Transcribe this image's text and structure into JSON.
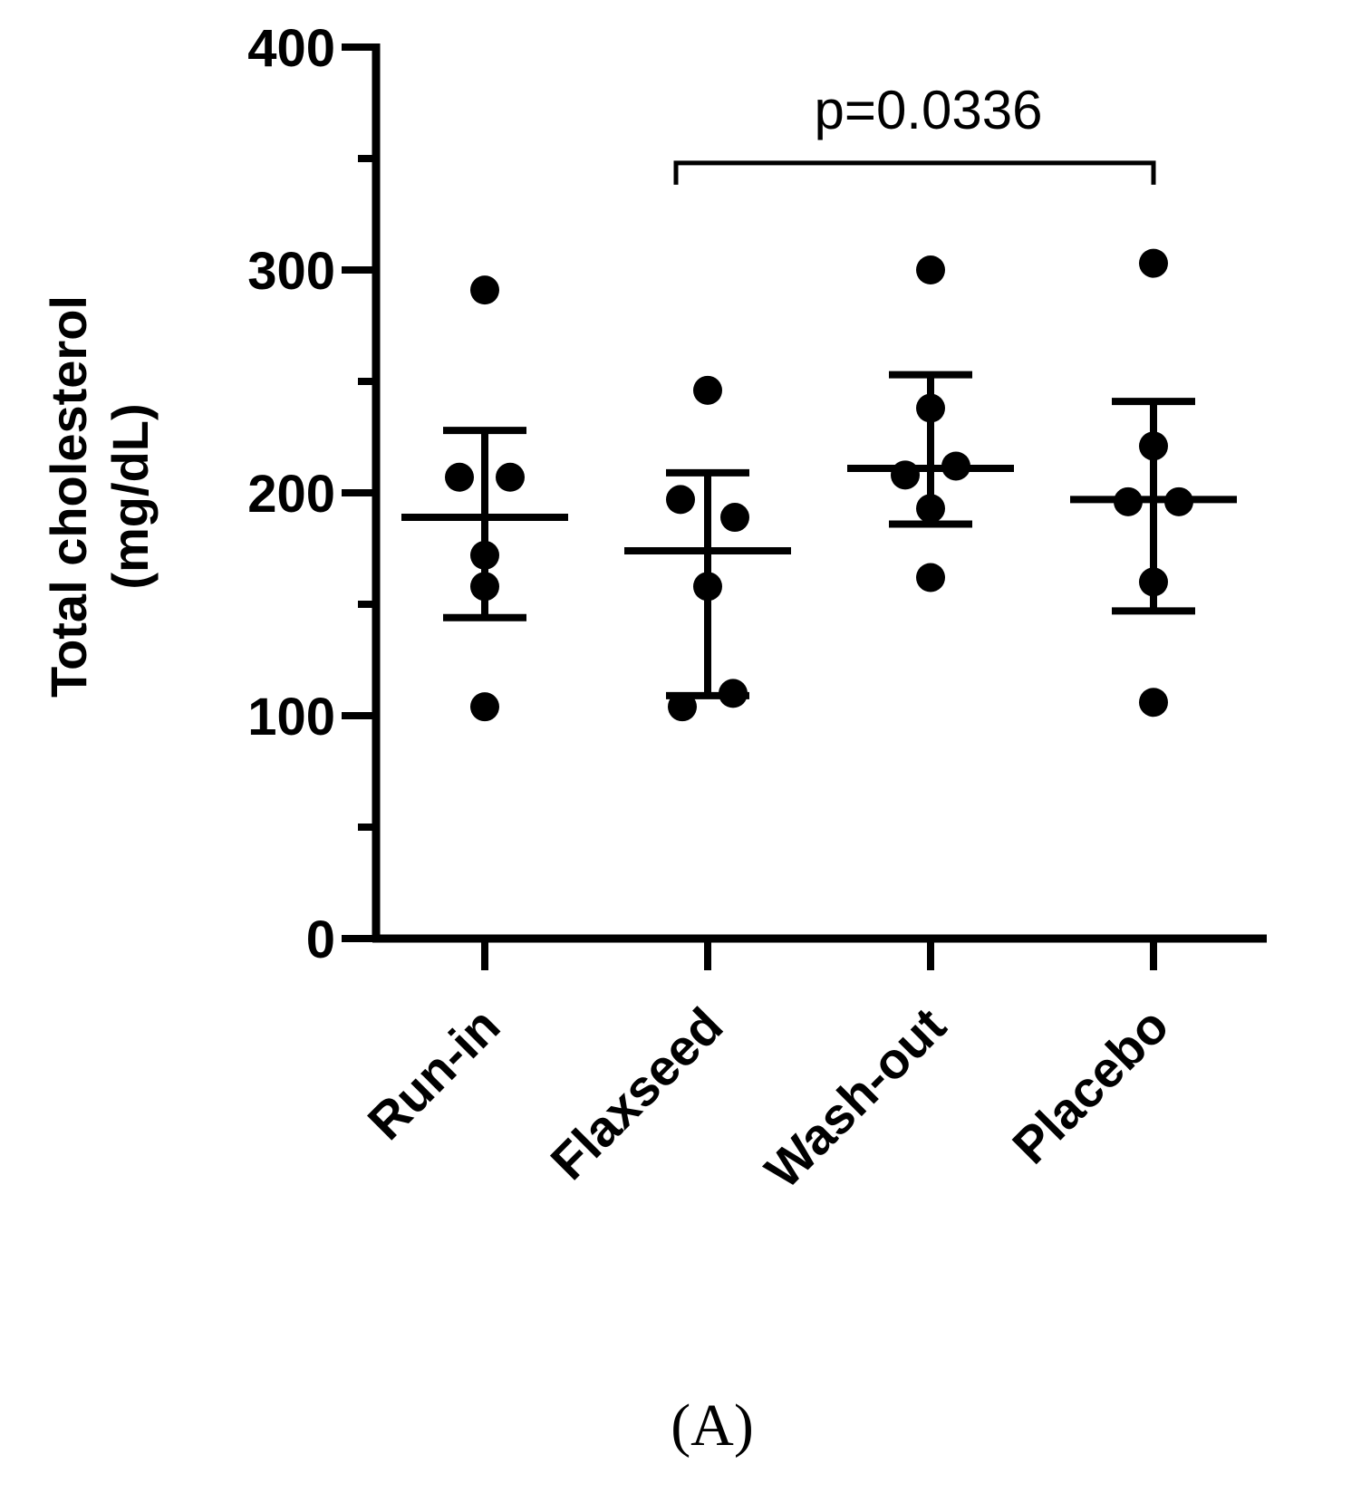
{
  "chart_data": {
    "type": "scatter",
    "title": "",
    "xlabel": "",
    "ylabel": [
      "Total cholesterol",
      "(mg/dL)"
    ],
    "ylim": [
      0,
      400
    ],
    "yticks": [
      "0",
      "100",
      "200",
      "300",
      "400"
    ],
    "y_minor_step": 50,
    "categories": [
      "Run-in",
      "Flaxseed",
      "Wash-out",
      "Placebo"
    ],
    "groups": [
      {
        "name": "Run-in",
        "points": [
          291,
          207,
          207,
          172,
          158,
          104
        ],
        "mean": 189,
        "error_low": 144,
        "error_high": 228
      },
      {
        "name": "Flaxseed",
        "points": [
          246,
          197,
          189,
          158,
          110,
          104
        ],
        "mean": 174,
        "error_low": 109,
        "error_high": 209
      },
      {
        "name": "Wash-out",
        "points": [
          300,
          238,
          208,
          212,
          193,
          162
        ],
        "mean": 211,
        "error_low": 186,
        "error_high": 253
      },
      {
        "name": "Placebo",
        "points": [
          303,
          221,
          196,
          196,
          160,
          106
        ],
        "mean": 197,
        "error_low": 147,
        "error_high": 241
      }
    ],
    "annotations": [
      {
        "type": "bracket",
        "from": "Flaxseed",
        "to": "Placebo",
        "y": 348,
        "text": "p=0.0336"
      }
    ],
    "panel_label": "(A)",
    "grid": false,
    "legend": "none",
    "colors": {
      "points": "#000000",
      "lines": "#000000"
    }
  }
}
